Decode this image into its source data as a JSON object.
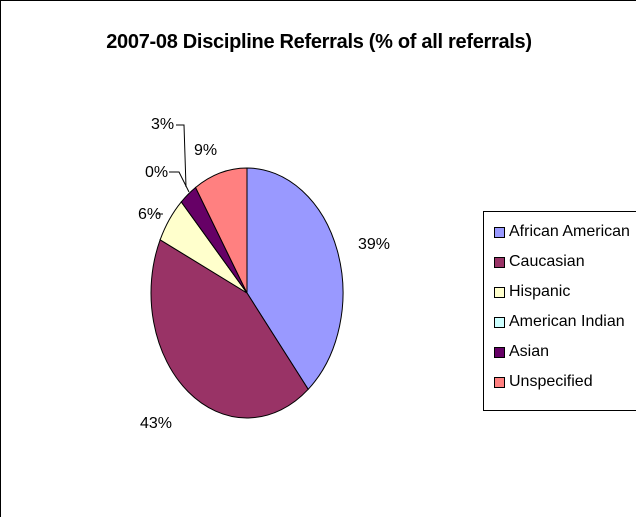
{
  "chart_data": {
    "type": "pie",
    "title": "2007-08 Discipline Referrals (% of all referrals)",
    "categories": [
      "African American",
      "Caucasian",
      "Hispanic",
      "American Indian",
      "Asian",
      "Unspecified"
    ],
    "values": [
      39,
      43,
      6,
      0,
      3,
      9
    ],
    "labels": [
      "39%",
      "43%",
      "6%",
      "0%",
      "3%",
      "9%"
    ],
    "colors": [
      "#9999FF",
      "#993366",
      "#FFFFCC",
      "#CCFFFF",
      "#660066",
      "#FF8080"
    ],
    "legend_position": "right"
  }
}
